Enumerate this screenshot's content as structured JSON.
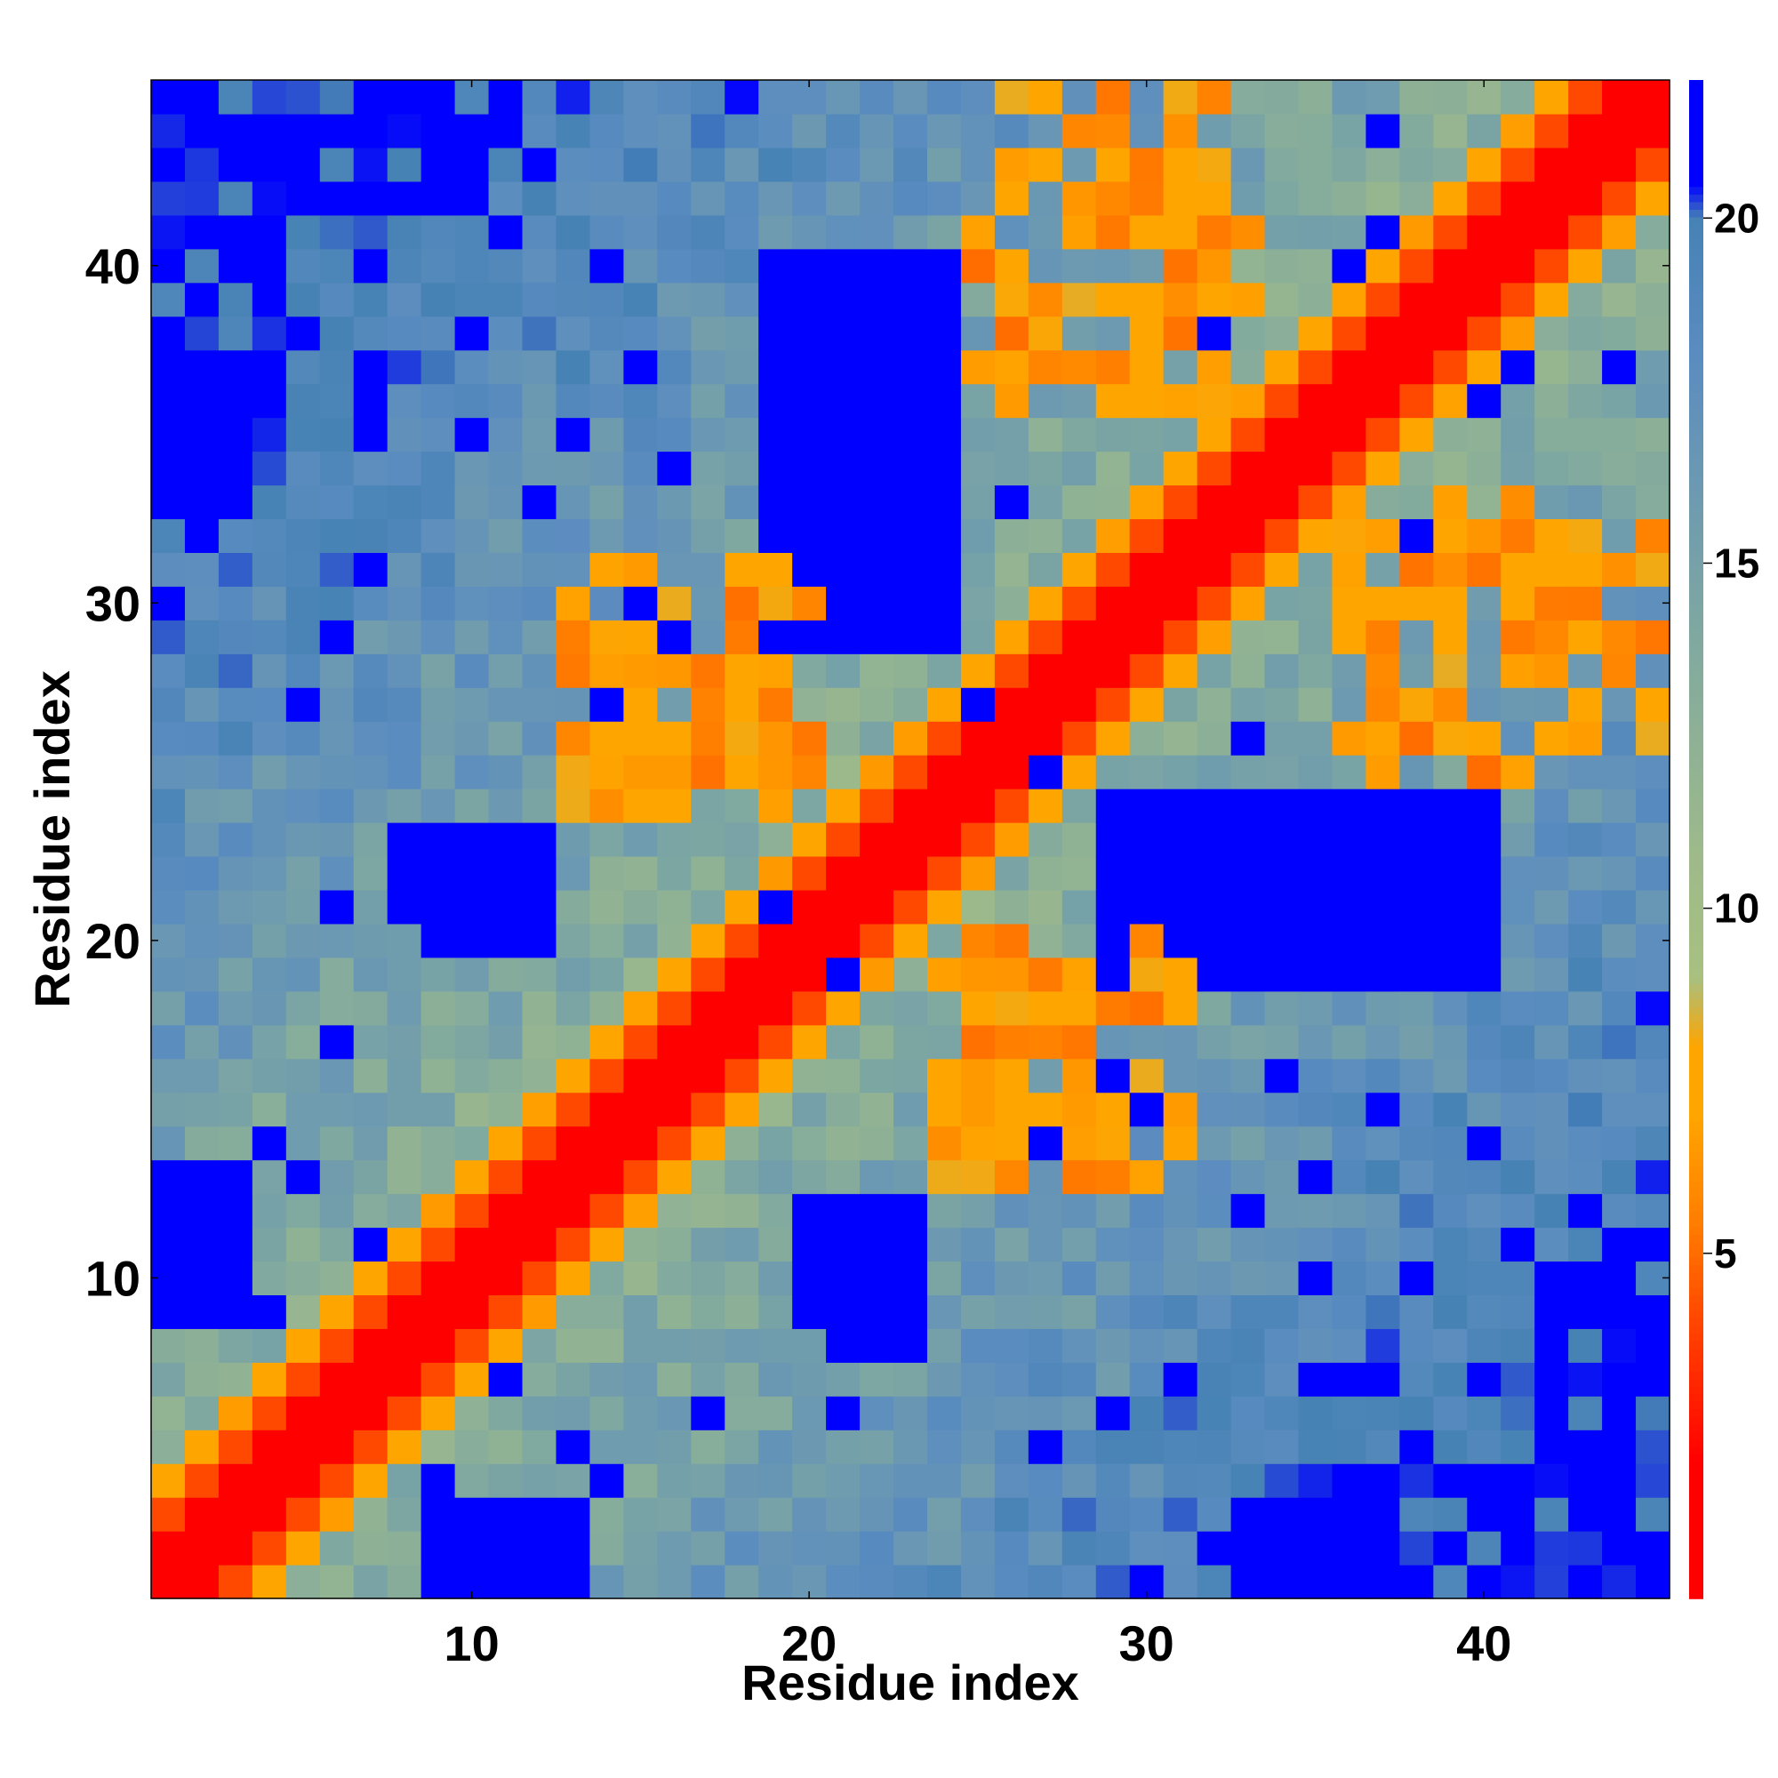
{
  "chart_data": {
    "type": "heatmap",
    "title": "",
    "xlabel": "Residue index",
    "ylabel": "Residue index",
    "n": 45,
    "xlim": [
      0.5,
      45.5
    ],
    "ylim": [
      0.5,
      45.5
    ],
    "x_ticks": [
      10,
      20,
      30,
      40
    ],
    "y_ticks": [
      10,
      20,
      30,
      40
    ],
    "grid": false,
    "colorbar": {
      "ticks": [
        5,
        10,
        15,
        20
      ],
      "range": [
        0,
        22
      ],
      "stops": [
        {
          "value": 0,
          "color": "#ff0000"
        },
        {
          "value": 2,
          "color": "#ff0000"
        },
        {
          "value": 4,
          "color": "#ff4500"
        },
        {
          "value": 5.5,
          "color": "#ff7f00"
        },
        {
          "value": 7,
          "color": "#ffa500"
        },
        {
          "value": 8,
          "color": "#ffa500"
        },
        {
          "value": 9,
          "color": "#a8c080"
        },
        {
          "value": 11,
          "color": "#9cb98c"
        },
        {
          "value": 14,
          "color": "#7fa8a0"
        },
        {
          "value": 18,
          "color": "#5b8cc0"
        },
        {
          "value": 20,
          "color": "#4682b4"
        },
        {
          "value": 20.5,
          "color": "#0000ff"
        },
        {
          "value": 22,
          "color": "#0000ff"
        }
      ]
    },
    "values_description": "Symmetric pairwise residue distance matrix; values estimated from colors",
    "band_overrides": [
      {
        "i": 5,
        "j": 27,
        "v": 21
      },
      {
        "i": 6,
        "j": 29,
        "v": 21
      },
      {
        "i": 10,
        "j": 35,
        "v": 21
      },
      {
        "i": 12,
        "j": 33,
        "v": 21
      },
      {
        "i": 14,
        "j": 40,
        "v": 21
      },
      {
        "i": 13,
        "j": 35,
        "v": 21
      },
      {
        "i": 15,
        "j": 30,
        "v": 21
      },
      {
        "i": 16,
        "j": 34,
        "v": 21
      },
      {
        "i": 7,
        "j": 37,
        "v": 21
      },
      {
        "i": 3,
        "j": 41,
        "v": 21
      },
      {
        "i": 2,
        "j": 12,
        "v": 21
      },
      {
        "i": 3,
        "j": 10,
        "v": 21
      },
      {
        "i": 4,
        "j": 9,
        "v": 21
      },
      {
        "i": 4,
        "j": 14,
        "v": 21
      },
      {
        "i": 5,
        "j": 13,
        "v": 21
      },
      {
        "i": 6,
        "j": 17,
        "v": 21
      },
      {
        "i": 7,
        "j": 11,
        "v": 21
      },
      {
        "i": 7,
        "j": 31,
        "v": 21
      },
      {
        "i": 8,
        "j": 9,
        "v": 21
      },
      {
        "i": 2,
        "j": 10,
        "v": 21
      },
      {
        "i": 2,
        "j": 11,
        "v": 21
      },
      {
        "i": 6,
        "j": 21,
        "v": 21
      },
      {
        "i": 12,
        "j": 23,
        "v": 21
      },
      {
        "i": 14,
        "j": 27,
        "v": 21
      },
      {
        "i": 15,
        "j": 37,
        "v": 21
      },
      {
        "i": 16,
        "j": 29,
        "v": 21
      },
      {
        "i": 19,
        "j": 21,
        "v": 21
      },
      {
        "i": 20,
        "j": 29,
        "v": 21
      },
      {
        "i": 24,
        "j": 30,
        "v": 21
      },
      {
        "i": 25,
        "j": 27,
        "v": 21
      },
      {
        "i": 26,
        "j": 33,
        "v": 21
      },
      {
        "i": 30,
        "j": 30,
        "v": 6
      },
      {
        "i": 32,
        "j": 38,
        "v": 21
      },
      {
        "i": 33,
        "j": 33,
        "v": 6
      },
      {
        "i": 36,
        "j": 40,
        "v": 21
      },
      {
        "i": 37,
        "j": 41,
        "v": 21
      },
      {
        "i": 44,
        "j": 45,
        "v": 21
      },
      {
        "i": 44,
        "j": 37,
        "v": 21
      }
    ],
    "blue_blocks": [
      {
        "x0": 19,
        "x1": 23,
        "y0": 29,
        "y1": 38
      },
      {
        "x0": 29,
        "x1": 40,
        "y0": 19,
        "y1": 24
      },
      {
        "x0": 9,
        "x1": 12,
        "y0": 20,
        "y1": 23
      },
      {
        "x0": 1,
        "x1": 3,
        "y0": 33,
        "y1": 37
      },
      {
        "x0": 1,
        "x1": 3,
        "y0": 9,
        "y1": 13
      },
      {
        "x0": 21,
        "x1": 23,
        "y0": 8,
        "y1": 11
      },
      {
        "x0": 33,
        "x1": 37,
        "y0": 1,
        "y1": 3
      },
      {
        "x0": 9,
        "x1": 13,
        "y0": 1,
        "y1": 3
      }
    ],
    "orange_clusters": [
      {
        "x0": 13,
        "x1": 19,
        "y0": 24,
        "y1": 31
      },
      {
        "x0": 24,
        "x1": 30,
        "y0": 13,
        "y1": 20
      },
      {
        "x0": 26,
        "x1": 32,
        "y0": 36,
        "y1": 45
      },
      {
        "x0": 36,
        "x1": 44,
        "y0": 25,
        "y1": 33
      }
    ]
  }
}
